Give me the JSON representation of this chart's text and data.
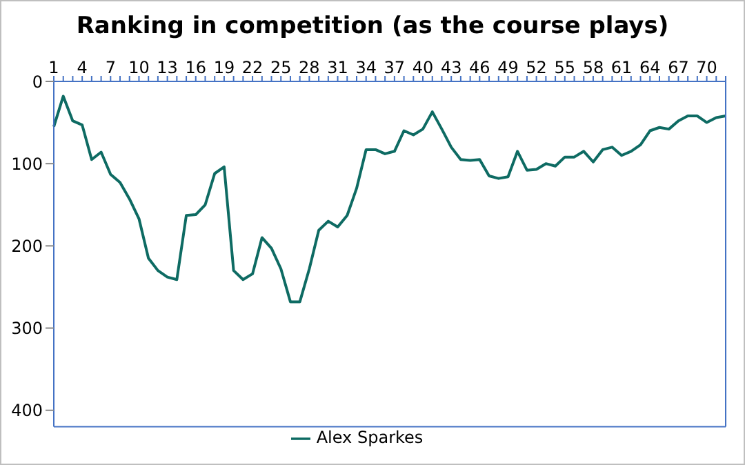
{
  "chart_data": {
    "type": "line",
    "title": "Ranking in competition (as the course plays)",
    "categories": [
      "1",
      null,
      null,
      "4",
      null,
      null,
      "7",
      null,
      null,
      "10",
      null,
      null,
      "13",
      null,
      null,
      "16",
      null,
      null,
      "19",
      null,
      null,
      "22",
      null,
      null,
      "25",
      null,
      null,
      "28",
      null,
      null,
      "31",
      null,
      null,
      "34",
      null,
      null,
      "37",
      null,
      null,
      "40",
      null,
      null,
      "43",
      null,
      null,
      "46",
      null,
      null,
      "49",
      null,
      null,
      "52",
      null,
      null,
      "55",
      null,
      null,
      "58",
      null,
      null,
      "61",
      null,
      null,
      "64",
      null,
      null,
      "67",
      null,
      null,
      "70",
      null,
      null
    ],
    "series": [
      {
        "name": "Alex Sparkes",
        "color": "#0e6b63",
        "values": [
          55,
          18,
          48,
          53,
          95,
          86,
          113,
          123,
          143,
          167,
          215,
          230,
          238,
          241,
          163,
          162,
          150,
          112,
          104,
          230,
          241,
          234,
          190,
          203,
          228,
          268,
          268,
          228,
          181,
          170,
          177,
          163,
          130,
          83,
          83,
          88,
          85,
          60,
          65,
          58,
          37,
          58,
          80,
          95,
          96,
          95,
          115,
          118,
          116,
          85,
          108,
          107,
          100,
          103,
          92,
          92,
          85,
          98,
          83,
          80,
          90,
          85,
          77,
          60,
          56,
          58,
          48,
          42,
          42,
          50,
          44,
          42
        ]
      }
    ],
    "ylim": [
      420,
      0
    ],
    "yticks": [
      0,
      100,
      200,
      300,
      400
    ],
    "legend": "bottom",
    "marker": "none",
    "line_style": "solid"
  }
}
